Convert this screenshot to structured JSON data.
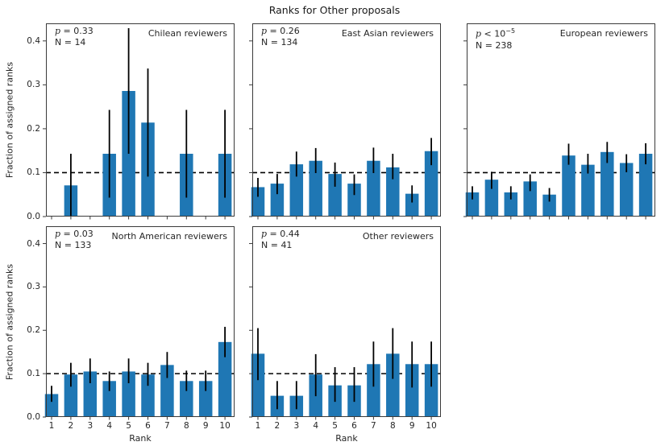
{
  "chart_data": {
    "type": "bar",
    "title": "Ranks for Other proposals",
    "xlabel": "Rank",
    "ylabel": "Fraction of assigned ranks",
    "categories": [
      1,
      2,
      3,
      4,
      5,
      6,
      7,
      8,
      9,
      10
    ],
    "xtick_labels": [
      "1",
      "2",
      "3",
      "4",
      "5",
      "6",
      "7",
      "8",
      "9",
      "10"
    ],
    "yticks": [
      0.0,
      0.1,
      0.2,
      0.3,
      0.4
    ],
    "ytick_labels": [
      "0.0",
      "0.1",
      "0.2",
      "0.3",
      "0.4"
    ],
    "ylim": [
      0,
      0.44
    ],
    "refline_y": 0.1,
    "bar_color": "#1f77b4",
    "errorbar_color": "#000000",
    "refline_color": "#000000",
    "grid": false,
    "subplots": [
      {
        "id": "chilean",
        "label": "Chilean reviewers",
        "p_symbol": "p",
        "p_relation": "=",
        "p_value": "0.33",
        "p_exponent": null,
        "n_label": "N = 14",
        "row": 0,
        "col": 0,
        "values": [
          0,
          0.071,
          0,
          0.143,
          0.286,
          0.214,
          0,
          0.143,
          0,
          0.143
        ],
        "err_lo": [
          null,
          0.0,
          null,
          0.043,
          0.143,
          0.091,
          null,
          0.043,
          null,
          0.043
        ],
        "err_hi": [
          null,
          0.143,
          null,
          0.243,
          0.429,
          0.337,
          null,
          0.243,
          null,
          0.243
        ]
      },
      {
        "id": "east-asian",
        "label": "East Asian reviewers",
        "p_symbol": "p",
        "p_relation": "=",
        "p_value": "0.26",
        "p_exponent": null,
        "n_label": "N = 134",
        "row": 0,
        "col": 1,
        "values": [
          0.067,
          0.075,
          0.119,
          0.127,
          0.097,
          0.075,
          0.127,
          0.112,
          0.052,
          0.149
        ],
        "err_lo": [
          0.045,
          0.051,
          0.091,
          0.099,
          0.068,
          0.049,
          0.099,
          0.085,
          0.032,
          0.117
        ],
        "err_hi": [
          0.088,
          0.097,
          0.148,
          0.156,
          0.123,
          0.096,
          0.157,
          0.143,
          0.071,
          0.179
        ]
      },
      {
        "id": "european",
        "label": "European reviewers",
        "p_symbol": "p",
        "p_relation": "<",
        "p_value": "10",
        "p_exponent": "−5",
        "n_label": "N = 238",
        "row": 0,
        "col": 2,
        "values": [
          0.055,
          0.084,
          0.055,
          0.08,
          0.05,
          0.139,
          0.118,
          0.147,
          0.122,
          0.143
        ],
        "err_lo": [
          0.039,
          0.063,
          0.039,
          0.058,
          0.034,
          0.118,
          0.098,
          0.122,
          0.101,
          0.119
        ],
        "err_hi": [
          0.069,
          0.102,
          0.069,
          0.096,
          0.065,
          0.166,
          0.143,
          0.17,
          0.142,
          0.167
        ]
      },
      {
        "id": "north-american",
        "label": "North American reviewers",
        "p_symbol": "p",
        "p_relation": "=",
        "p_value": "0.03",
        "p_exponent": null,
        "n_label": "N = 133",
        "row": 1,
        "col": 0,
        "values": [
          0.053,
          0.098,
          0.105,
          0.083,
          0.105,
          0.098,
          0.12,
          0.083,
          0.083,
          0.173
        ],
        "err_lo": [
          0.035,
          0.07,
          0.078,
          0.06,
          0.078,
          0.072,
          0.09,
          0.06,
          0.06,
          0.138
        ],
        "err_hi": [
          0.072,
          0.125,
          0.135,
          0.105,
          0.135,
          0.125,
          0.15,
          0.107,
          0.107,
          0.208
        ]
      },
      {
        "id": "other",
        "label": "Other reviewers",
        "p_symbol": "p",
        "p_relation": "=",
        "p_value": "0.44",
        "p_exponent": null,
        "n_label": "N = 41",
        "row": 1,
        "col": 1,
        "values": [
          0.146,
          0.049,
          0.049,
          0.098,
          0.073,
          0.073,
          0.122,
          0.146,
          0.122,
          0.122
        ],
        "err_lo": [
          0.085,
          0.018,
          0.018,
          0.048,
          0.035,
          0.035,
          0.07,
          0.088,
          0.068,
          0.07
        ],
        "err_hi": [
          0.205,
          0.083,
          0.083,
          0.145,
          0.115,
          0.115,
          0.174,
          0.205,
          0.174,
          0.174
        ]
      }
    ]
  }
}
